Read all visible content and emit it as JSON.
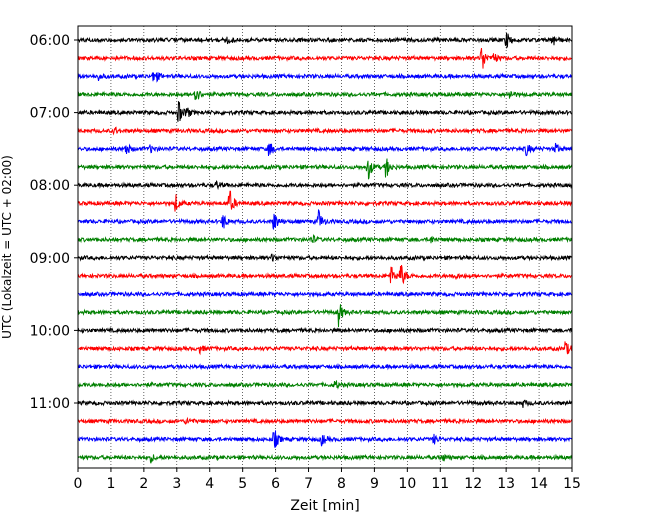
{
  "chart_data": {
    "type": "line",
    "xlabel": "Zeit  [min]",
    "ylabel": "UTC (Lokalzeit = UTC + 02:00)",
    "xlim": [
      0,
      15
    ],
    "xticks": [
      "0",
      "1",
      "2",
      "3",
      "4",
      "5",
      "6",
      "7",
      "8",
      "9",
      "10",
      "11",
      "12",
      "13",
      "14",
      "15"
    ],
    "yticks": [
      {
        "label": "06:00",
        "trace": 0
      },
      {
        "label": "07:00",
        "trace": 4
      },
      {
        "label": "08:00",
        "trace": 8
      },
      {
        "label": "09:00",
        "trace": 12
      },
      {
        "label": "10:00",
        "trace": 16
      },
      {
        "label": "11:00",
        "trace": 20
      }
    ],
    "grid": "vertical dotted at each minute",
    "series_colors": [
      "#000000",
      "#ff0000",
      "#0000ff",
      "#008000"
    ],
    "traces": [
      {
        "start": "06:00",
        "events": [
          {
            "t": 4.5,
            "a": 0.8
          },
          {
            "t": 13.0,
            "a": 1.0
          },
          {
            "t": 14.4,
            "a": 0.9
          }
        ]
      },
      {
        "start": "06:15",
        "events": [
          {
            "t": 12.25,
            "a": 1.8
          },
          {
            "t": 12.6,
            "a": 0.7
          }
        ]
      },
      {
        "start": "06:30",
        "events": [
          {
            "t": 2.3,
            "a": 1.1
          },
          {
            "t": 0.6,
            "a": 0.4
          }
        ]
      },
      {
        "start": "06:45",
        "events": [
          {
            "t": 3.55,
            "a": 1.2
          },
          {
            "t": 13.1,
            "a": 0.5
          }
        ]
      },
      {
        "start": "07:00",
        "events": [
          {
            "t": 3.05,
            "a": 1.4
          },
          {
            "t": 3.3,
            "a": 0.6
          }
        ]
      },
      {
        "start": "07:15",
        "events": [
          {
            "t": 1.1,
            "a": 0.4
          }
        ]
      },
      {
        "start": "07:30",
        "events": [
          {
            "t": 1.45,
            "a": 0.8
          },
          {
            "t": 2.2,
            "a": 0.4
          },
          {
            "t": 5.8,
            "a": 1.0
          },
          {
            "t": 13.6,
            "a": 0.8
          },
          {
            "t": 14.5,
            "a": 0.6
          }
        ]
      },
      {
        "start": "07:45",
        "events": [
          {
            "t": 8.8,
            "a": 1.5
          },
          {
            "t": 9.35,
            "a": 1.3
          }
        ]
      },
      {
        "start": "08:00",
        "events": [
          {
            "t": 4.2,
            "a": 0.4
          }
        ]
      },
      {
        "start": "08:15",
        "events": [
          {
            "t": 2.95,
            "a": 1.1
          },
          {
            "t": 4.6,
            "a": 1.6
          }
        ]
      },
      {
        "start": "08:30",
        "events": [
          {
            "t": 4.4,
            "a": 0.9
          },
          {
            "t": 5.95,
            "a": 1.2
          },
          {
            "t": 7.3,
            "a": 1.3
          }
        ]
      },
      {
        "start": "08:45",
        "events": [
          {
            "t": 7.1,
            "a": 0.5
          },
          {
            "t": 10.7,
            "a": 0.4
          }
        ]
      },
      {
        "start": "09:00",
        "events": [
          {
            "t": 5.9,
            "a": 0.4
          }
        ]
      },
      {
        "start": "09:15",
        "events": [
          {
            "t": 9.5,
            "a": 1.1
          },
          {
            "t": 9.8,
            "a": 1.5
          },
          {
            "t": 11.4,
            "a": 0.5
          }
        ]
      },
      {
        "start": "09:30",
        "events": []
      },
      {
        "start": "09:45",
        "events": [
          {
            "t": 7.9,
            "a": 1.6
          }
        ]
      },
      {
        "start": "10:00",
        "events": []
      },
      {
        "start": "10:15",
        "events": [
          {
            "t": 3.7,
            "a": 0.4
          },
          {
            "t": 14.8,
            "a": 0.9
          }
        ]
      },
      {
        "start": "10:30",
        "events": []
      },
      {
        "start": "10:45",
        "events": [
          {
            "t": 7.8,
            "a": 0.5
          }
        ]
      },
      {
        "start": "11:00",
        "events": [
          {
            "t": 13.5,
            "a": 0.4
          }
        ]
      },
      {
        "start": "11:15",
        "events": [
          {
            "t": 3.3,
            "a": 0.4
          }
        ]
      },
      {
        "start": "11:30",
        "events": [
          {
            "t": 5.95,
            "a": 1.3
          },
          {
            "t": 7.4,
            "a": 0.7
          },
          {
            "t": 10.8,
            "a": 0.5
          }
        ]
      },
      {
        "start": "11:45",
        "events": [
          {
            "t": 2.2,
            "a": 0.5
          },
          {
            "t": 11.05,
            "a": 0.5
          }
        ]
      }
    ]
  }
}
